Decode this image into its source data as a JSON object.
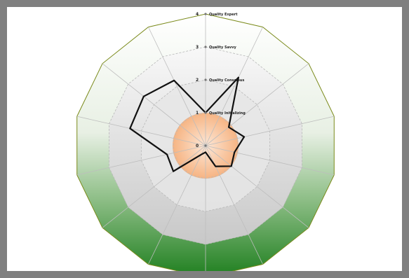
{
  "chart_data": {
    "type": "radar",
    "title": "",
    "axes_count": 14,
    "r_range": [
      0,
      4
    ],
    "radial_ticks": [
      "0",
      "1",
      "2",
      "3",
      "4"
    ],
    "level_labels": [
      "Quality Initializing",
      "Quality Conscious",
      "Quality Savvy",
      "Quality Expert"
    ],
    "series": [
      {
        "values": [
          1.0,
          2.3,
          0.9,
          1.2,
          0.9,
          1.0,
          0.7,
          0.2,
          0.3,
          1.25,
          1.2,
          2.35,
          2.4,
          2.2
        ]
      }
    ],
    "grid": true,
    "colors": {
      "series_line": "#111111",
      "outer_band_top": "#ffffff",
      "outer_band_bottom": "#2e8b2e",
      "inner_fill": "#f7b98a",
      "outline": "#7a8a1a"
    }
  }
}
